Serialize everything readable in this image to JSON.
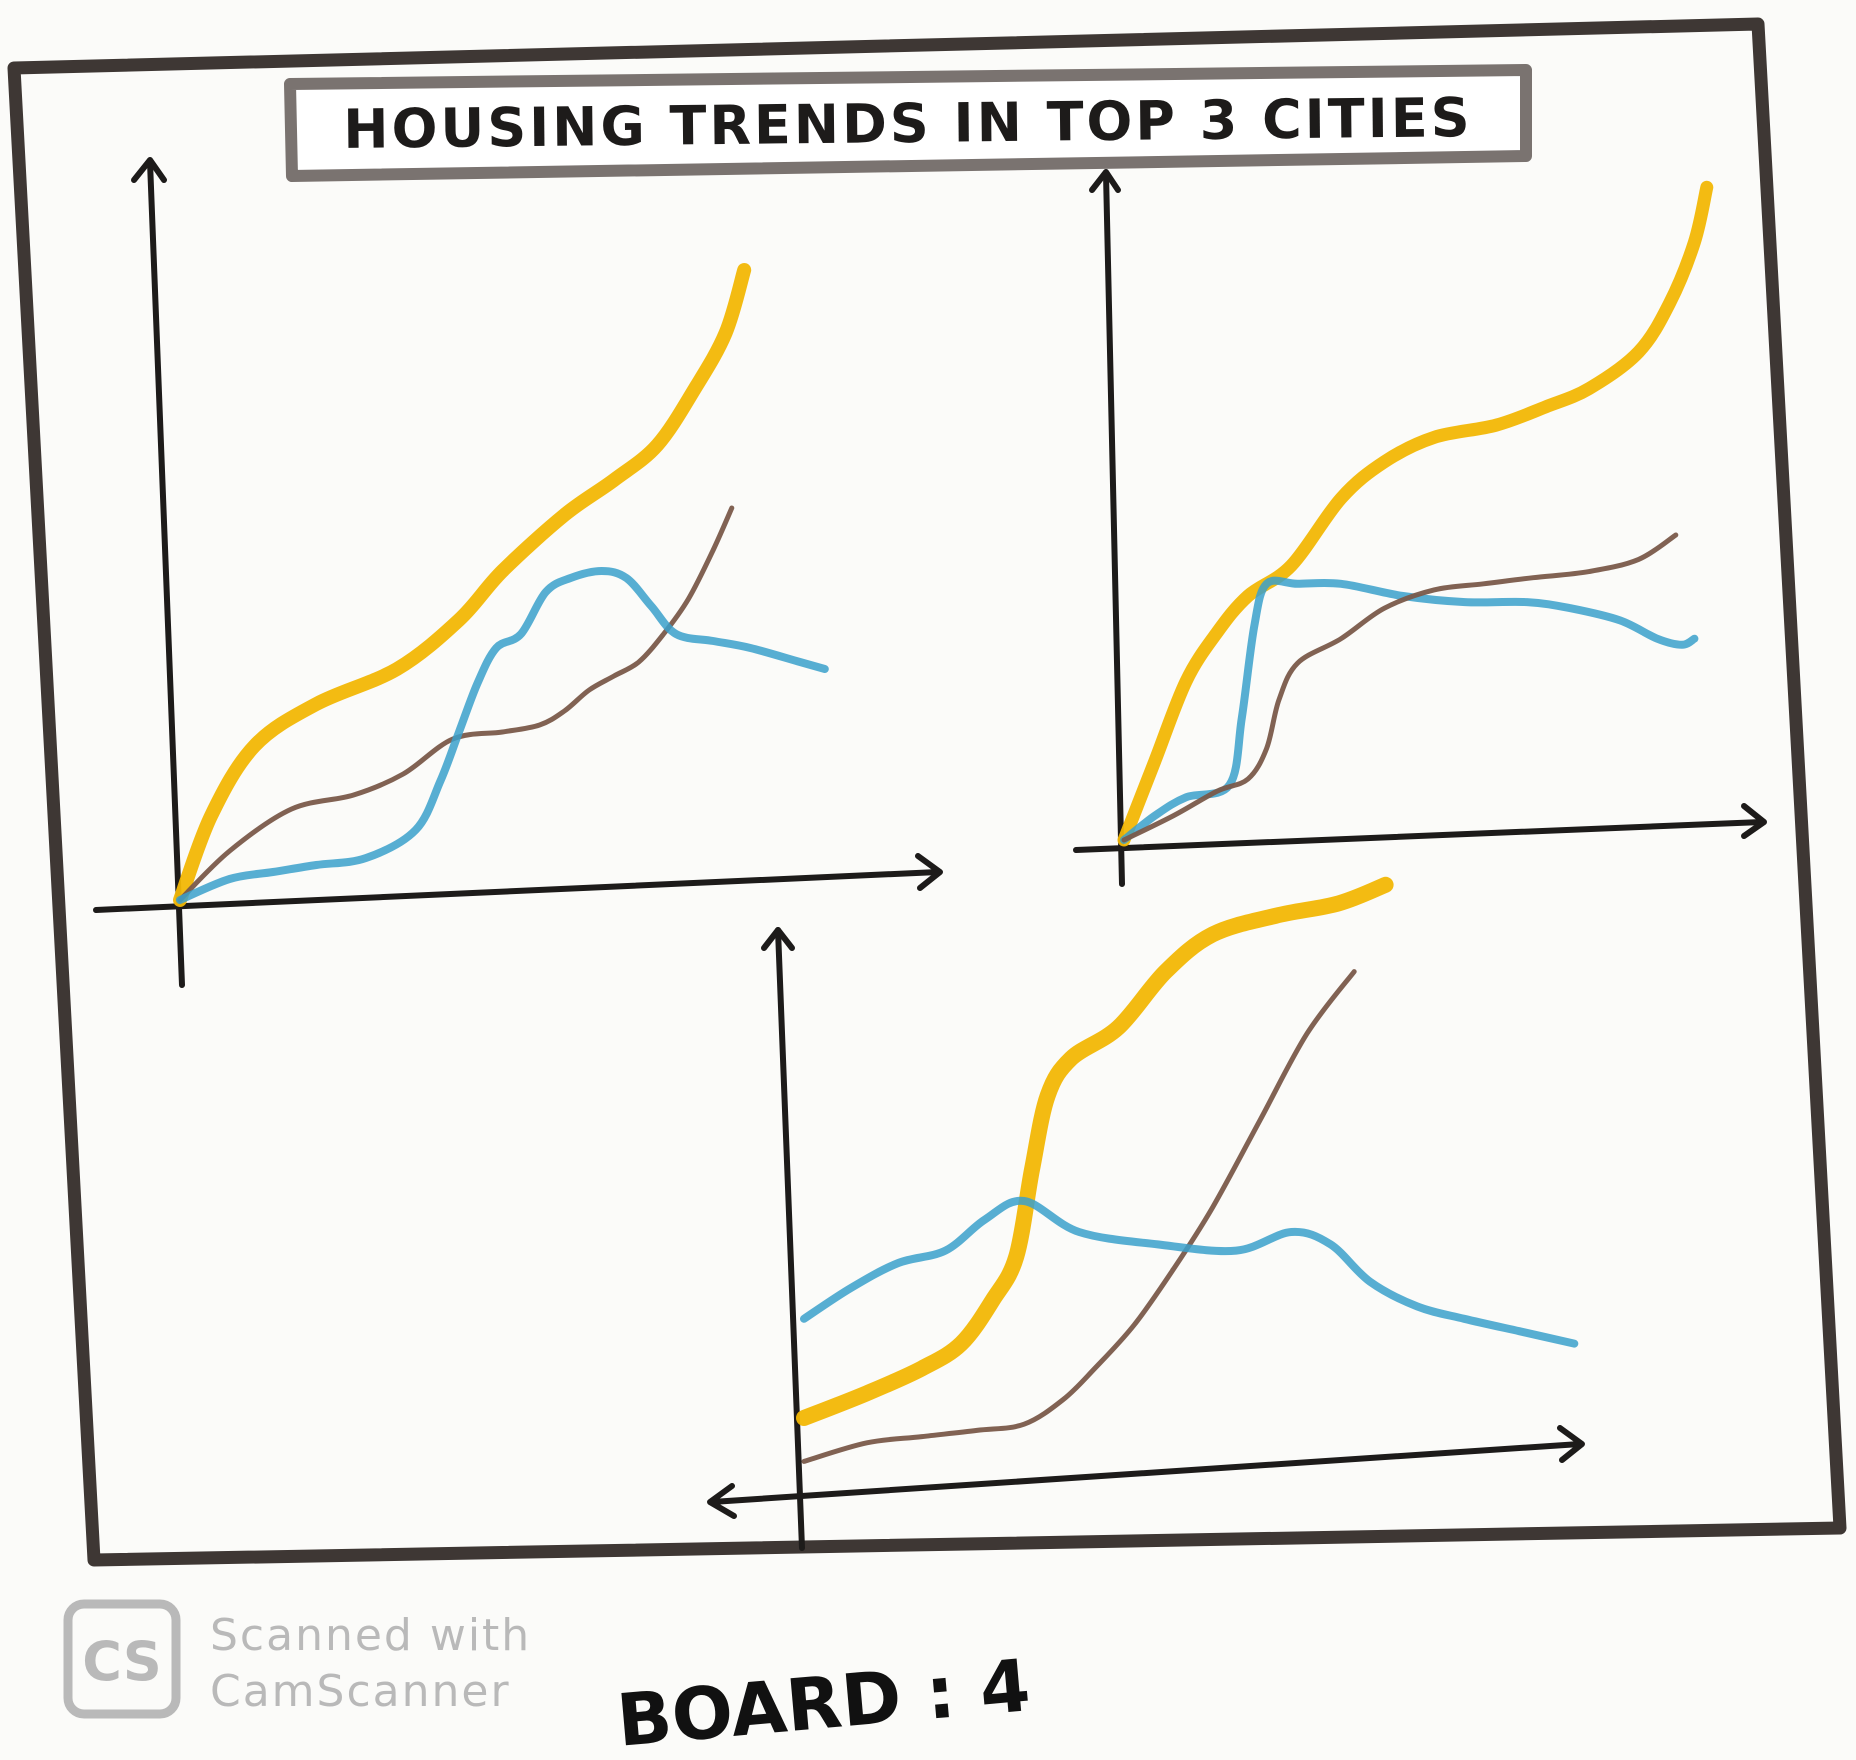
{
  "title": "HOUSING TRENDS IN TOP 3 CITIES",
  "board_label": "BOARD : 4",
  "watermark": {
    "logo_text": "CS",
    "line1": "Scanned with",
    "line2": "CamScanner"
  },
  "colors": {
    "paper": "#fbfbf9",
    "ink": "#1d1b1a",
    "frame": "#3e3734",
    "title_box": "#7a7370",
    "yellow": "#f2b705",
    "blue": "#3aa0cb",
    "brown": "#7a5a4a",
    "watermark": "#b9b9b9"
  },
  "chart_data": [
    {
      "type": "line",
      "title": "",
      "xlabel": "",
      "ylabel": "",
      "xlim": [
        0,
        100
      ],
      "ylim": [
        0,
        100
      ],
      "grid": false,
      "series": [
        {
          "color": "yellow",
          "width": 14,
          "x": [
            0,
            5,
            12,
            22,
            35,
            45,
            52,
            62,
            70,
            77,
            83,
            88,
            91
          ],
          "y": [
            0,
            12,
            22,
            28,
            33,
            40,
            47,
            55,
            60,
            65,
            73,
            81,
            90
          ]
        },
        {
          "color": "brown",
          "width": 5,
          "x": [
            0,
            8,
            18,
            28,
            36,
            44,
            52,
            58,
            62,
            66,
            70,
            74,
            78,
            82,
            86,
            89
          ],
          "y": [
            0,
            7,
            13,
            15,
            18,
            23,
            24,
            25,
            27,
            30,
            32,
            34,
            38,
            43,
            50,
            56
          ]
        },
        {
          "color": "blue",
          "width": 8,
          "x": [
            0,
            8,
            15,
            22,
            30,
            38,
            42,
            45,
            48,
            51,
            55,
            59,
            63,
            68,
            72,
            76,
            80,
            86,
            92,
            100,
            104
          ],
          "y": [
            0,
            3,
            4,
            5,
            6,
            10,
            17,
            24,
            31,
            36,
            38,
            44,
            46,
            47,
            46,
            42,
            38,
            37,
            36,
            34,
            33
          ]
        }
      ]
    },
    {
      "type": "line",
      "title": "",
      "xlabel": "",
      "ylabel": "",
      "xlim": [
        0,
        100
      ],
      "ylim": [
        0,
        100
      ],
      "grid": false,
      "series": [
        {
          "color": "yellow",
          "width": 13,
          "x": [
            0,
            5,
            10,
            15,
            20,
            27,
            35,
            42,
            50,
            60,
            68,
            75,
            83,
            88,
            92,
            94
          ],
          "y": [
            0,
            13,
            26,
            34,
            40,
            45,
            56,
            62,
            66,
            68,
            71,
            74,
            80,
            88,
            98,
            107
          ]
        },
        {
          "color": "blue",
          "width": 8,
          "x": [
            0,
            5,
            10,
            17,
            19,
            21,
            23,
            28,
            35,
            45,
            55,
            65,
            72,
            80,
            86,
            90,
            92
          ],
          "y": [
            0,
            4,
            7,
            9,
            20,
            35,
            42,
            42,
            42,
            40,
            39,
            39,
            38,
            36,
            33,
            32,
            33
          ]
        },
        {
          "color": "brown",
          "width": 5,
          "x": [
            0,
            8,
            15,
            20,
            23,
            25,
            28,
            35,
            42,
            50,
            58,
            66,
            75,
            83,
            89
          ],
          "y": [
            0,
            4,
            8,
            10,
            15,
            23,
            29,
            33,
            38,
            41,
            42,
            43,
            44,
            46,
            50
          ]
        }
      ]
    },
    {
      "type": "line",
      "title": "",
      "xlabel": "",
      "ylabel": "",
      "xlim": [
        0,
        100
      ],
      "ylim": [
        0,
        100
      ],
      "grid": false,
      "series": [
        {
          "color": "yellow",
          "width": 16,
          "x": [
            0,
            8,
            15,
            20,
            24,
            27,
            29,
            31,
            34,
            40,
            46,
            52,
            60,
            68,
            74
          ],
          "y": [
            10,
            14,
            18,
            22,
            29,
            36,
            50,
            62,
            68,
            73,
            82,
            88,
            91,
            93,
            96
          ]
        },
        {
          "color": "brown",
          "width": 5,
          "x": [
            0,
            8,
            15,
            22,
            28,
            33,
            37,
            42,
            47,
            52,
            58,
            64,
            70
          ],
          "y": [
            3,
            6,
            7,
            8,
            9,
            13,
            18,
            25,
            34,
            44,
            58,
            72,
            82
          ]
        },
        {
          "color": "blue",
          "width": 8,
          "x": [
            0,
            6,
            12,
            18,
            23,
            28,
            35,
            45,
            55,
            62,
            67,
            72,
            78,
            84,
            91,
            98
          ],
          "y": [
            26,
            31,
            35,
            37,
            42,
            45,
            40,
            38,
            37,
            40,
            38,
            32,
            28,
            26,
            24,
            22
          ]
        }
      ]
    }
  ]
}
